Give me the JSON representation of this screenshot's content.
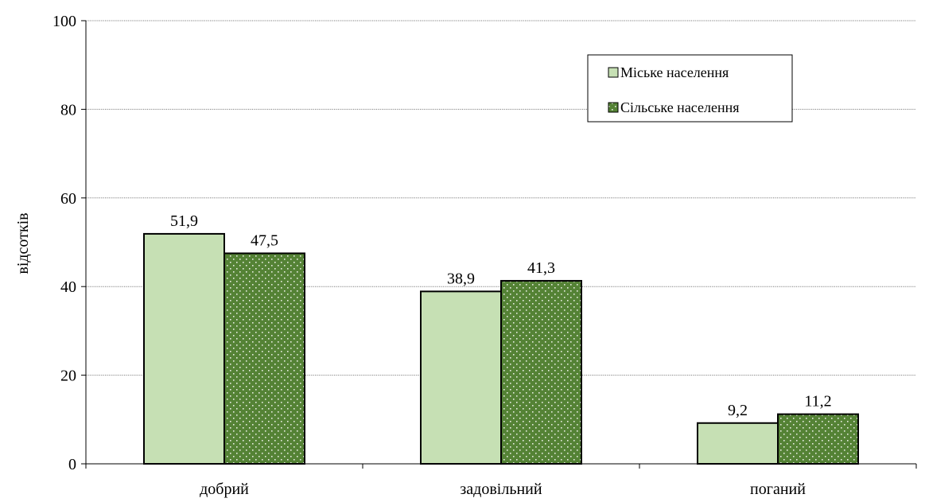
{
  "chart_data": {
    "type": "bar",
    "ylabel": "відсотків",
    "xlabel": "",
    "ylim": [
      0,
      100
    ],
    "yticks": [
      0,
      20,
      40,
      60,
      80,
      100
    ],
    "grid": true,
    "legend_position": "top-right",
    "categories": [
      "добрий",
      "задовільний",
      "поганий"
    ],
    "series": [
      {
        "name": "Міське населення",
        "values": [
          51.9,
          38.9,
          9.2
        ],
        "labels": [
          "51,9",
          "38,9",
          "9,2"
        ],
        "color": "#c6e0b4",
        "pattern": "solid"
      },
      {
        "name": "Сільське населення",
        "values": [
          47.5,
          41.3,
          11.2
        ],
        "labels": [
          "47,5",
          "41,3",
          "11,2"
        ],
        "color": "#548235",
        "pattern": "dotted"
      }
    ]
  }
}
